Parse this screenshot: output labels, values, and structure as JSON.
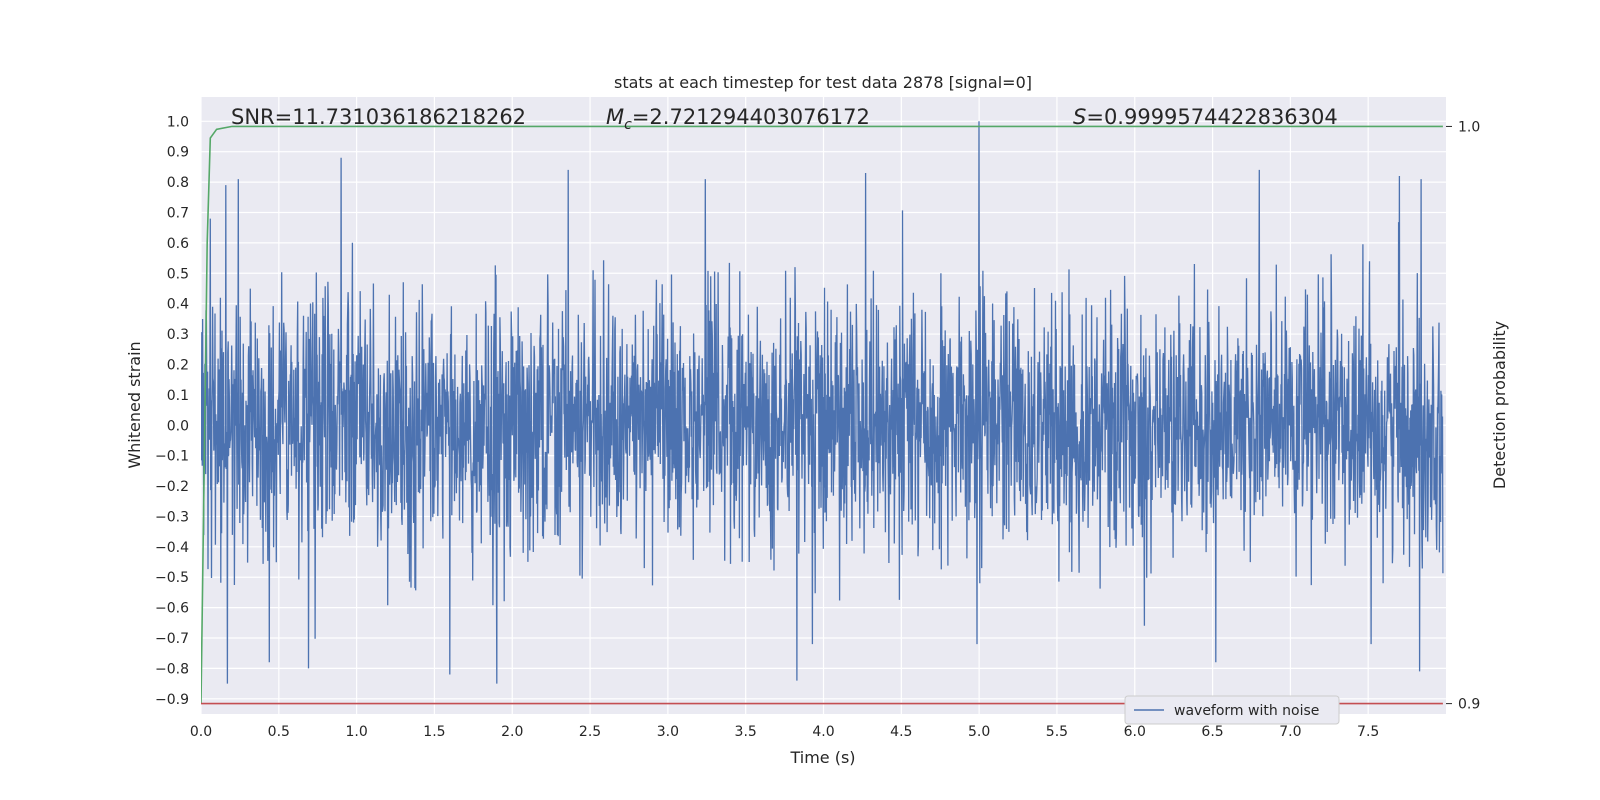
{
  "chart_data": {
    "type": "line",
    "title": "stats at each timestep for test data 2878 [signal=0]",
    "xlabel": "Time (s)",
    "ylabel": "Whitened strain",
    "y2label": "Detection probability",
    "xlim": [
      0.0,
      8.0
    ],
    "ylim": [
      -0.95,
      1.08
    ],
    "y2lim": [
      0.8982,
      1.0051
    ],
    "grid": true,
    "legend_position": "bottom-right",
    "x_ticks": [
      "0.0",
      "0.5",
      "1.0",
      "1.5",
      "2.0",
      "2.5",
      "3.0",
      "3.5",
      "4.0",
      "4.5",
      "5.0",
      "5.5",
      "6.0",
      "6.5",
      "7.0",
      "7.5"
    ],
    "y_ticks": [
      "1.0",
      "0.9",
      "0.8",
      "0.7",
      "0.6",
      "0.5",
      "0.4",
      "0.3",
      "0.2",
      "0.1",
      "0.0",
      "-0.1",
      "-0.2",
      "-0.3",
      "-0.4",
      "-0.5",
      "-0.6",
      "-0.7",
      "-0.8",
      "-0.9"
    ],
    "y2_ticks": [
      "1.0",
      "0.9"
    ],
    "annotations": {
      "snr": "SNR=11.731036186218262",
      "mc": "=2.721294403076172",
      "mc_symbol": "M",
      "mc_sub": "c",
      "s": "=0.9999574422836304",
      "s_symbol": "S"
    },
    "series": [
      {
        "name": "waveform with noise",
        "color": "#4c72b0",
        "axis": "left",
        "description_values": "dense noisy whitened strain, mostly within -0.45..0.45 with spikes",
        "peaks": [
          {
            "x": 0.06,
            "y": 0.68
          },
          {
            "x": 0.16,
            "y": 0.79
          },
          {
            "x": 0.24,
            "y": 0.81
          },
          {
            "x": 0.9,
            "y": 0.88
          },
          {
            "x": 2.36,
            "y": 0.84
          },
          {
            "x": 3.24,
            "y": 0.81
          },
          {
            "x": 4.27,
            "y": 0.83
          },
          {
            "x": 5.0,
            "y": 1.0
          },
          {
            "x": 6.8,
            "y": 0.84
          },
          {
            "x": 7.7,
            "y": 0.82
          },
          {
            "x": 7.84,
            "y": 0.81
          }
        ],
        "troughs": [
          {
            "x": 0.17,
            "y": -0.85
          },
          {
            "x": 0.44,
            "y": -0.78
          },
          {
            "x": 0.69,
            "y": -0.8
          },
          {
            "x": 1.6,
            "y": -0.82
          },
          {
            "x": 1.9,
            "y": -0.85
          },
          {
            "x": 3.83,
            "y": -0.84
          },
          {
            "x": 6.52,
            "y": -0.78
          },
          {
            "x": 7.83,
            "y": -0.81
          }
        ]
      },
      {
        "name": "",
        "color": "#55a868",
        "axis": "right",
        "x": [
          0.0,
          0.02,
          0.04,
          0.06,
          0.1,
          0.2,
          1.0,
          3.0,
          5.0,
          7.0,
          7.98
        ],
        "values": [
          0.9,
          0.94,
          0.98,
          0.998,
          0.9995,
          1.0,
          1.0,
          1.0,
          1.0,
          1.0,
          1.0
        ]
      },
      {
        "name": "",
        "color": "#c44e52",
        "axis": "right",
        "x": [
          0.0,
          7.98
        ],
        "values": [
          0.9,
          0.9
        ]
      }
    ]
  }
}
